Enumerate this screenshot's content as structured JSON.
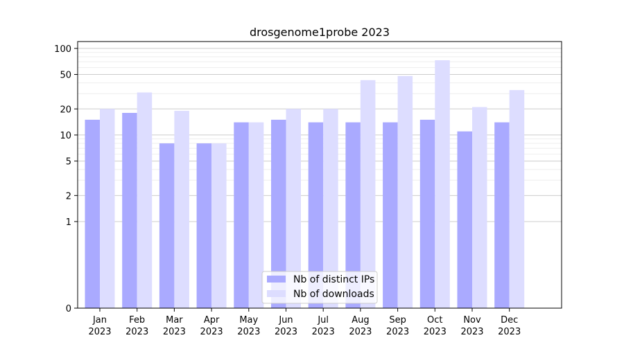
{
  "chart_data": {
    "type": "bar",
    "title": "drosgenome1probe 2023",
    "xlabel": "",
    "ylabel": "",
    "yscale": "symlog",
    "ylim": [
      0,
      120
    ],
    "yticks": [
      0,
      1,
      2,
      5,
      10,
      20,
      50,
      100
    ],
    "grid": true,
    "legend_position": "bottom-center",
    "categories": [
      [
        "Jan",
        "2023"
      ],
      [
        "Feb",
        "2023"
      ],
      [
        "Mar",
        "2023"
      ],
      [
        "Apr",
        "2023"
      ],
      [
        "May",
        "2023"
      ],
      [
        "Jun",
        "2023"
      ],
      [
        "Jul",
        "2023"
      ],
      [
        "Aug",
        "2023"
      ],
      [
        "Sep",
        "2023"
      ],
      [
        "Oct",
        "2023"
      ],
      [
        "Nov",
        "2023"
      ],
      [
        "Dec",
        "2023"
      ]
    ],
    "series": [
      {
        "name": "Nb of distinct IPs",
        "color": "#aaaaff",
        "values": [
          15,
          18,
          8,
          8,
          14,
          15,
          14,
          14,
          14,
          15,
          11,
          14
        ]
      },
      {
        "name": "Nb of downloads",
        "color": "#ddddff",
        "values": [
          20,
          31,
          19,
          8,
          14,
          20,
          20,
          43,
          48,
          73,
          21,
          33
        ]
      }
    ]
  }
}
